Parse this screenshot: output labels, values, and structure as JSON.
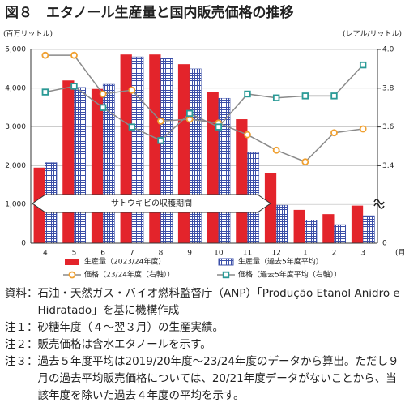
{
  "chart_data": {
    "type": "bar-line",
    "title": "図８　エタノール生産量と国内販売価格の推移",
    "y_unit": "(百万リットル)",
    "y2_unit": "(レアル/リットル)",
    "x_unit": "(月)",
    "y2_origin_label": "0",
    "annotation": "サトウキビの収穫期間",
    "categories": [
      "4",
      "5",
      "6",
      "7",
      "8",
      "9",
      "10",
      "11",
      "12",
      "1",
      "2",
      "3"
    ],
    "ylim": [
      0,
      5000
    ],
    "yticks": [
      0,
      {
        "value": 1000,
        "label": "1,000"
      },
      {
        "value": 2000,
        "label": "2,000"
      },
      {
        "value": 3000,
        "label": "3,000"
      },
      {
        "value": 4000,
        "label": "4,000"
      },
      {
        "value": 5000,
        "label": "5,000"
      }
    ],
    "y2lim": [
      3.0,
      4.0
    ],
    "y2ticks": [
      3.4,
      3.6,
      3.8,
      {
        "value": 4.0,
        "label": "4.0"
      }
    ],
    "grid": true,
    "series": [
      {
        "name": "生産量（2023/24年度）",
        "kind": "bar",
        "color": "#e3242b",
        "values": [
          1950,
          4200,
          3980,
          4870,
          4870,
          4620,
          3900,
          3200,
          1820,
          860,
          750,
          970
        ]
      },
      {
        "name": "生産量（過去5年度平均）",
        "kind": "bar",
        "color": "#3b4fa8",
        "values": [
          2080,
          4020,
          4100,
          4810,
          4770,
          4500,
          3740,
          2340,
          980,
          600,
          480,
          710
        ]
      },
      {
        "name": "価格（23/24年度（右軸））",
        "kind": "line",
        "axis": "y2",
        "color": "#f0a030",
        "values": [
          3.97,
          3.97,
          3.77,
          3.79,
          3.63,
          3.64,
          3.62,
          3.56,
          3.48,
          3.42,
          3.57,
          3.59
        ]
      },
      {
        "name": "価格（過去5年度平均（右軸））",
        "kind": "line",
        "axis": "y2",
        "color": "#2a9a96",
        "values": [
          3.78,
          3.81,
          3.7,
          3.6,
          3.53,
          3.67,
          3.6,
          3.77,
          3.75,
          3.76,
          3.76,
          3.92
        ]
      }
    ]
  },
  "notes": [
    {
      "label": "資料：",
      "text": "石油・天然ガス・バイオ燃料監督庁（ANP）「Produção Etanol Anidro e Hidratado」を基に機構作成"
    },
    {
      "label": "注１：",
      "text": "砂糖年度（４～翌３月）の生産実績。"
    },
    {
      "label": "注２：",
      "text": "販売価格は含水エタノールを示す。"
    },
    {
      "label": "注３：",
      "text": "過去５年度平均は2019/20年度～23/24年度のデータから算出。ただし９月の過去平均販売価格については、20/21年度データがないことから、当該年度を除いた過去４年度の平均を示す。"
    }
  ]
}
